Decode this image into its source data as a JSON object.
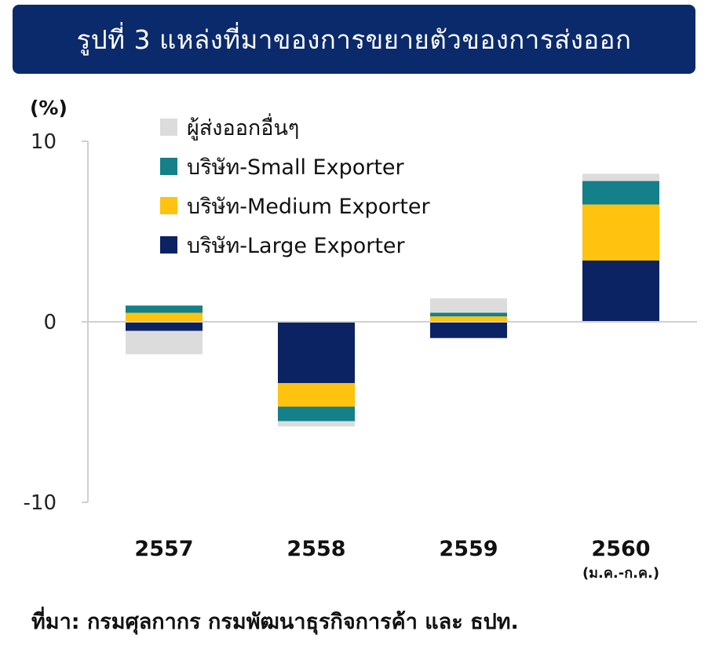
{
  "title": "รูปที่ 3 แหล่งที่มาของการขยายตัวของการส่งออก",
  "source_note": "ที่มา: กรมศุลกากร กรมพัฒนาธุรกิจการค้า และ ธปท.",
  "colors": {
    "banner": "#0b2a6b",
    "other": "#dcdcdc",
    "small": "#13808a",
    "medium": "#ffc20e",
    "large": "#0b2263",
    "axis": "#d0d0d0"
  },
  "chart_data": {
    "type": "bar",
    "stacked": true,
    "ylabel": "(%)",
    "ylim": [
      -10,
      10
    ],
    "yticks": [
      10,
      0,
      -10
    ],
    "categories": [
      "2557",
      "2558",
      "2559",
      "2560"
    ],
    "category_sublabels": [
      "",
      "",
      "",
      "(ม.ค.-ก.ค.)"
    ],
    "legend_position": "top-left",
    "series": [
      {
        "name": "ผู้ส่งออกอื่นๆ",
        "key": "other",
        "values": [
          -1.3,
          -0.3,
          0.8,
          0.4
        ]
      },
      {
        "name": "บริษัท-Small Exporter",
        "key": "small",
        "values": [
          0.4,
          -0.8,
          0.2,
          1.3
        ]
      },
      {
        "name": "บริษัท-Medium Exporter",
        "key": "medium",
        "values": [
          0.5,
          -1.3,
          0.3,
          3.1
        ]
      },
      {
        "name": "บริษัท-Large Exporter",
        "key": "large",
        "values": [
          -0.5,
          -3.4,
          -0.9,
          3.4
        ]
      }
    ]
  }
}
